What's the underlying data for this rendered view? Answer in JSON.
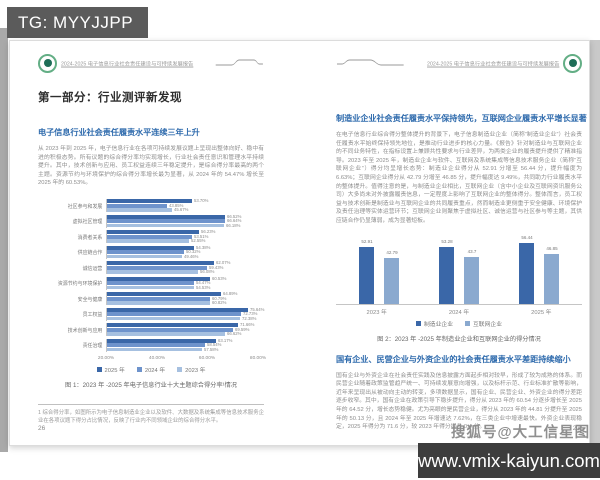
{
  "watermarks": {
    "tg_badge": "TG: MYYJJPP",
    "sohu": "搜狐号@大工信星图",
    "site": "www.vmix-kaiyun.com"
  },
  "colors": {
    "series_2025": "#3a67a8",
    "series_2024": "#6e93cc",
    "series_2023": "#a6c0e0",
    "manufacturing": "#3a67a8",
    "internet": "#8aa9cf",
    "heading_blue": "#2f6bad"
  },
  "left_page": {
    "header_text": "2024-2025 电子信息行业社会责任建设与可持续发展报告",
    "section_title": "第一部分：行业测评新发现",
    "heading": "电子信息行业社会责任履责水平连续三年上升",
    "paragraph": "从 2023 年到 2025 年，电子信息行业在各项可持续发展议题上呈现出整体向好、稳中有进的积极态势。所有议题的综合得分率均实现增长，行业社会责任意识和管理水平持续提升。其中，技术创新与应用、员工权益连续三年稳定提升，是综合得分率最高的两个主题。资源节约与环境保护的综合得分率增长最为显著，从 2024 年的 54.47% 增长至 2025 年的 60.53%。",
    "footnote": "1  综合得分率，如图所示为电子信息制造业企业以及软件、大数据及系统集成等信息技术服务企业在各项议题下得分占比情况，反映了行业内不同领域企业的综合得分水平。",
    "page_number": "26"
  },
  "right_page": {
    "header_text": "2024-2025 电子信息行业社会责任建设与可持续发展报告",
    "page_number": "27",
    "sections": [
      {
        "heading": "制造业企业社会责任履责水平保持领先，互联网企业履责水平增长显著",
        "paragraph": "在电子信息行业综合得分整体提升的背景下，电子信息制造业企业（简称“制造业企业”）社会责任履责水平始终保持领先地位，是推动行业进步的核心力量。《报告》针对制造业与互联网企业的不同业务特性，在指标设置上兼顾共性要求与行业差异，为两类企业的履责提升提供了精准指导。2023 年至 2025 年，制造业企业与软件、互联网及系统集成等信息技术服务企业（简称“互联网企业”）得分均呈增长态势：制造业企业得分从 52.91 分增至 56.44 分，提升幅度为 6.63%；互联网企业得分从 42.79 分增至 46.85 分，提升幅度达 9.49%，共同助力行业履责水平的整体提升。值得注意的是，与制造业企业相比，互联网企业（含中小企业及互联网资讯服务公司）大多尚未对外披露履责信息，一定程度上影响了互联网企业的整体得分。整体而言，员工权益与技术创新是制造业与互联网企业的共同履责重点，然而制造业更侧重于安全健康、环境保护及责任治理等实体运营环节；互联网企业则聚焦于虚拟社区、诚信运营与社区参与等主题，其供应链合作仍显薄弱，成为显著短板。"
      },
      {
        "heading": "国有企业、民营企业与外资企业的社会责任履责水平差距持续缩小",
        "paragraph": "国有企业与外资企业在社会责任实践及信息披露方面起步相对较早，形成了较为成熟的体系。而民营企业随着政策监管趋严统一、可持续发展意向增强，以及标杆示范、行业标准扩散等影响，近年来呈现出从被动向主动的转变，多项数据显示，国有企业、民营企业、外资企业的得分差距逐步收窄。其中，国有企业在政策引导下稳步提升，得分从 2023 年的 60.54 分逐步增长至 2025 年的 64.52 分，增长态势稳健。尤为亮眼的是民营企业，得分从 2023 年的 44.81 分提升至 2025 年的 50.13 分，且 2024 年至 2025 年增速达 7.62%，在三类企业中增速最快。外资企业表现稳定，2025 年得分为 71.6 分，较 2023 年得分提升 0.4 分。"
      }
    ]
  },
  "chart_data": [
    {
      "type": "bar",
      "orientation": "horizontal",
      "caption": "图 1：2023 年 -2025 年电子信息行业十大主题综合得分率¹情况",
      "categories": [
        "社区参与和发展",
        "虚拟社区管理",
        "消费者关系",
        "供应链合作",
        "诚信运营",
        "资源节约与环境保护",
        "安全与健康",
        "员工权益",
        "技术创新与应用",
        "责任治理"
      ],
      "series": [
        {
          "name": "2025 年",
          "color_key": "series_2025",
          "values": [
            53.7,
            66.52,
            56.23,
            54.38,
            62.07,
            60.53,
            64.89,
            75.64,
            71.66,
            63.17
          ]
        },
        {
          "name": "2024 年",
          "color_key": "series_2024",
          "values": [
            43.85,
            66.64,
            53.51,
            50.32,
            59.43,
            54.47,
            60.79,
            72.73,
            69.59,
            58.54
          ]
        },
        {
          "name": "2023 年",
          "color_key": "series_2023",
          "values": [
            45.67,
            66.18,
            52.55,
            49.46,
            56.08,
            54.53,
            60.82,
            72.38,
            66.62,
            57.58
          ]
        }
      ],
      "x_ticks": [
        "20.00%",
        "40.00%",
        "60.00%",
        "80.00%"
      ],
      "xlim": [
        20,
        80
      ],
      "value_suffix": "%",
      "legend_position": "bottom",
      "grid": false
    },
    {
      "type": "bar",
      "orientation": "vertical",
      "caption": "图 2：2023 年 -2025 年制造业企业和互联网企业的得分情况",
      "categories": [
        "2023 年",
        "2024 年",
        "2025 年"
      ],
      "series": [
        {
          "name": "制造业企业",
          "color_key": "manufacturing",
          "values": [
            52.91,
            53.28,
            56.44
          ]
        },
        {
          "name": "互联网企业",
          "color_key": "internet",
          "values": [
            42.79,
            43.7,
            46.85
          ]
        }
      ],
      "ylim": [
        0,
        60
      ],
      "legend_position": "bottom",
      "grid": false
    }
  ]
}
